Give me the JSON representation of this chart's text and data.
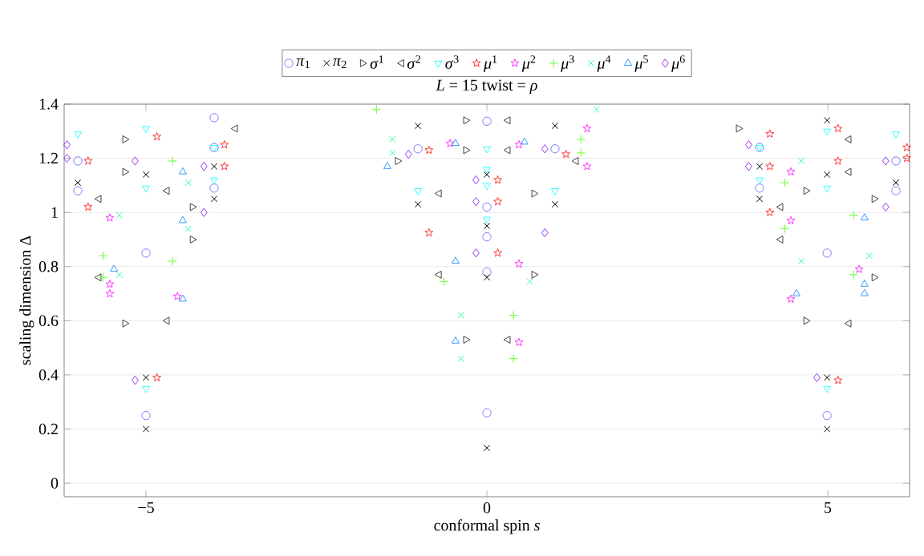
{
  "chart_data": {
    "type": "scatter",
    "title": "*L* = 15    twist = *ρ*",
    "xlabel": "conformal spin *s*",
    "ylabel": "scaling dimension Δ",
    "xlim": [
      -6.2,
      6.2
    ],
    "ylim": [
      -0.05,
      1.4
    ],
    "xticks": [
      {
        "value": -5,
        "label": "−5"
      },
      0,
      5
    ],
    "yticks": [
      0,
      0.2,
      0.4,
      0.6,
      0.8,
      1,
      1.2,
      1.4
    ],
    "grid": "y",
    "legend": "top",
    "series": [
      {
        "name": "*π*$_{1}$",
        "color": "#8080ff",
        "marker": "circle",
        "x": [
          -6.0,
          -6.0,
          -5.0,
          -5.0,
          -4.0,
          -4.0,
          -4.0,
          -1.01,
          0,
          0,
          0,
          0,
          0,
          1.0,
          4.0,
          4.0,
          4.99,
          4.99,
          6.0,
          6.0
        ],
        "values": [
          1.19,
          1.08,
          0.85,
          0.25,
          1.35,
          1.24,
          1.09,
          1.235,
          1.337,
          1.02,
          0.91,
          0.78,
          0.26,
          1.235,
          1.24,
          1.09,
          0.85,
          0.25,
          1.19,
          1.08
        ]
      },
      {
        "name": "*π*$_{2}$",
        "color": "#000000",
        "marker": "cross",
        "x": [
          -6.0,
          -5.0,
          -5.0,
          -5.0,
          -4.0,
          -4.0,
          -1.01,
          -1.01,
          0,
          0,
          0,
          0,
          1.0,
          1.0,
          4.0,
          4.0,
          4.99,
          4.99,
          4.99,
          4.99,
          6.0
        ],
        "values": [
          1.11,
          1.14,
          0.39,
          0.2,
          1.17,
          1.05,
          1.32,
          1.03,
          1.14,
          0.95,
          0.76,
          0.13,
          1.32,
          1.03,
          1.17,
          1.05,
          1.34,
          1.14,
          0.39,
          0.2,
          1.11
        ]
      },
      {
        "name": "*σ*$^{1}$",
        "color": "#404040",
        "marker": "triangle-right",
        "x": [
          -5.31,
          -5.31,
          -5.31,
          -4.32,
          -4.32,
          -1.31,
          -0.31,
          -0.31,
          -0.31,
          0.69,
          0.69,
          3.69,
          4.68,
          4.68,
          5.68,
          5.68
        ],
        "values": [
          1.27,
          1.15,
          0.59,
          1.02,
          0.9,
          1.19,
          1.34,
          1.23,
          0.53,
          1.07,
          0.77,
          1.31,
          1.08,
          0.6,
          1.05,
          0.76
        ]
      },
      {
        "name": "*σ*$^{2}$",
        "color": "#404040",
        "marker": "triangle-left",
        "x": [
          -5.69,
          -5.69,
          -4.69,
          -4.69,
          -3.69,
          -0.7,
          -0.7,
          0.31,
          0.31,
          0.31,
          1.31,
          4.31,
          4.31,
          5.31,
          5.31,
          5.31
        ],
        "values": [
          1.05,
          0.76,
          1.08,
          0.6,
          1.31,
          1.07,
          0.77,
          1.34,
          1.23,
          0.53,
          1.19,
          1.02,
          0.9,
          1.27,
          1.15,
          0.59
        ]
      },
      {
        "name": "*σ*$^{3}$",
        "color": "#33ffff",
        "marker": "triangle-down",
        "x": [
          -6.0,
          -5.0,
          -5.0,
          -5.0,
          -4.0,
          -4.0,
          -1.01,
          0,
          0,
          0,
          0,
          1.0,
          4.0,
          4.0,
          4.99,
          4.99,
          4.99,
          6.0
        ],
        "values": [
          1.29,
          1.31,
          1.09,
          0.35,
          1.24,
          1.12,
          1.08,
          1.235,
          1.16,
          1.1,
          0.975,
          1.08,
          1.24,
          1.12,
          1.3,
          1.09,
          0.35,
          1.29
        ]
      },
      {
        "name": "*μ*$^{1}$",
        "color": "#ff3333",
        "marker": "star",
        "x": [
          -5.85,
          -5.85,
          -4.84,
          -4.84,
          -3.85,
          -3.85,
          -0.85,
          -0.85,
          0.16,
          0.16,
          0.16,
          1.16,
          4.15,
          4.15,
          4.15,
          5.15,
          5.15,
          5.15,
          6.16,
          6.16
        ],
        "values": [
          1.19,
          1.02,
          1.28,
          0.39,
          1.25,
          1.17,
          1.23,
          0.925,
          1.12,
          1.04,
          0.85,
          1.215,
          1.29,
          1.17,
          1.0,
          1.31,
          1.19,
          0.38,
          1.24,
          1.2
        ]
      },
      {
        "name": "*μ*$^{2}$",
        "color": "#ff33ff",
        "marker": "star",
        "x": [
          -5.53,
          -5.53,
          -5.53,
          -4.54,
          -0.54,
          0.47,
          0.47,
          0.47,
          1.47,
          1.47,
          4.46,
          4.46,
          4.46,
          5.46
        ],
        "values": [
          0.98,
          0.735,
          0.7,
          0.69,
          1.255,
          1.25,
          0.81,
          0.52,
          1.31,
          1.17,
          1.15,
          0.97,
          0.68,
          0.79
        ]
      },
      {
        "name": "*μ*$^{3}$",
        "color": "#66ff33",
        "marker": "plus",
        "x": [
          -5.63,
          -5.63,
          -4.61,
          -4.61,
          -1.62,
          -0.63,
          0.39,
          0.39,
          1.38,
          1.38,
          4.37,
          4.37,
          5.38,
          5.38
        ],
        "values": [
          0.84,
          0.76,
          1.19,
          0.82,
          1.38,
          0.745,
          0.62,
          0.46,
          1.27,
          1.22,
          1.11,
          0.94,
          0.99,
          0.77
        ]
      },
      {
        "name": "*μ*$^{4}$",
        "color": "#33ff99",
        "marker": "cross",
        "x": [
          -5.39,
          -5.39,
          -4.38,
          -4.38,
          -1.385,
          -1.385,
          -0.38,
          -0.38,
          0.63,
          1.61,
          4.61,
          4.61,
          5.61
        ],
        "values": [
          0.99,
          0.77,
          1.11,
          0.94,
          1.27,
          1.22,
          0.62,
          0.46,
          0.745,
          1.38,
          1.19,
          0.82,
          0.84
        ]
      },
      {
        "name": "*μ*$^{5}$",
        "color": "#3399ff",
        "marker": "triangle",
        "x": [
          -5.47,
          -4.46,
          -4.46,
          -4.46,
          -1.46,
          -0.46,
          -0.46,
          -0.46,
          0.55,
          4.54,
          5.54,
          5.54,
          5.54
        ],
        "values": [
          0.79,
          1.15,
          0.97,
          0.68,
          1.17,
          1.255,
          0.82,
          0.525,
          1.26,
          0.7,
          0.98,
          0.735,
          0.7
        ]
      },
      {
        "name": "*μ*$^{6}$",
        "color": "#9933ff",
        "marker": "diamond",
        "x": [
          -6.16,
          -6.16,
          -5.16,
          -5.16,
          -4.15,
          -4.15,
          -1.15,
          -0.16,
          -0.16,
          -0.16,
          0.85,
          0.85,
          3.84,
          3.84,
          4.84,
          5.85,
          5.85
        ],
        "values": [
          1.25,
          1.2,
          1.19,
          0.38,
          1.17,
          1.0,
          1.215,
          1.12,
          1.04,
          0.85,
          1.235,
          0.925,
          1.25,
          1.17,
          0.39,
          1.19,
          1.02
        ]
      }
    ]
  }
}
